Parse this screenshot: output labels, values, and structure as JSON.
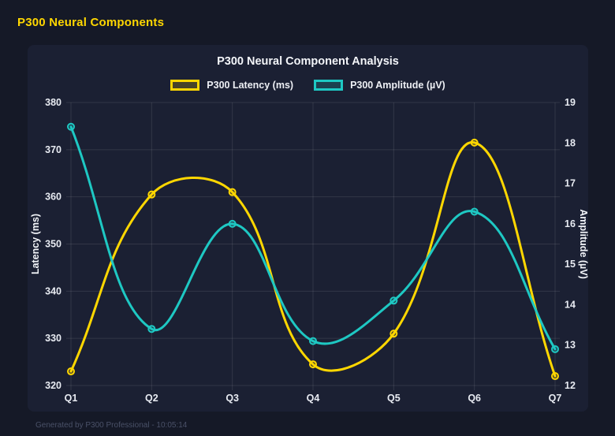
{
  "page": {
    "title": "P300 Neural Components",
    "footer": "Generated by P300 Professional - 10:05:14"
  },
  "colors": {
    "background": "#151927",
    "panel": "#1B2033",
    "header_text": "#FFD700",
    "grid": "rgba(255,255,255,0.10)",
    "tick_text": "#E8EBF2",
    "title_text": "#F3F5F9",
    "footer_text": "#4A5168",
    "latency_series": "#FFD700",
    "amplitude_series": "#1EC8C3"
  },
  "chart_data": {
    "type": "line",
    "title": "P300 Neural Component Analysis",
    "categories": [
      "Q1",
      "Q2",
      "Q3",
      "Q4",
      "Q5",
      "Q6",
      "Q7"
    ],
    "series": [
      {
        "name": "P300 Latency (ms)",
        "axis": "left",
        "color": "#FFD700",
        "values": [
          323,
          360.5,
          361,
          324.5,
          331,
          371.5,
          322
        ]
      },
      {
        "name": "P300 Amplitude (µV)",
        "axis": "right",
        "color": "#1EC8C3",
        "values": [
          18.4,
          13.4,
          16.0,
          13.1,
          14.1,
          16.3,
          12.9
        ]
      }
    ],
    "left_axis": {
      "label": "Latency (ms)",
      "min": 320,
      "max": 380,
      "step": 10
    },
    "right_axis": {
      "label": "Amplitude (µV)",
      "min": 12,
      "max": 19,
      "step": 1
    },
    "grid": true,
    "legend_position": "top",
    "smoothing": 0.4
  }
}
